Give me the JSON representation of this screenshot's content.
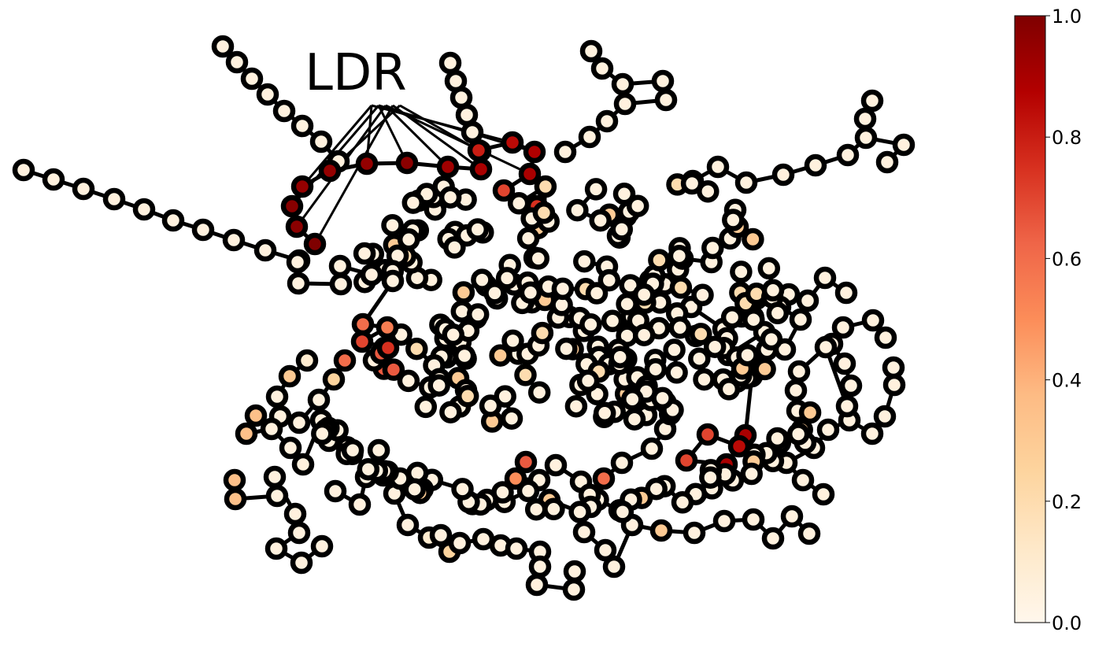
{
  "annotation": {
    "label": "LDR"
  },
  "colorbar": {
    "colormap": "OrRd",
    "range": [
      0,
      1
    ],
    "tick_labels": [
      "0.0",
      "0.2",
      "0.4",
      "0.6",
      "0.8",
      "1.0"
    ],
    "stops": [
      "#fff7ec",
      "#fee8c8",
      "#fdd49e",
      "#fdbb84",
      "#fc8d59",
      "#ef6548",
      "#d7301f",
      "#b30000",
      "#7f0000"
    ]
  },
  "node_style": {
    "outline_color": "#000000",
    "edge_color": "#000000"
  }
}
